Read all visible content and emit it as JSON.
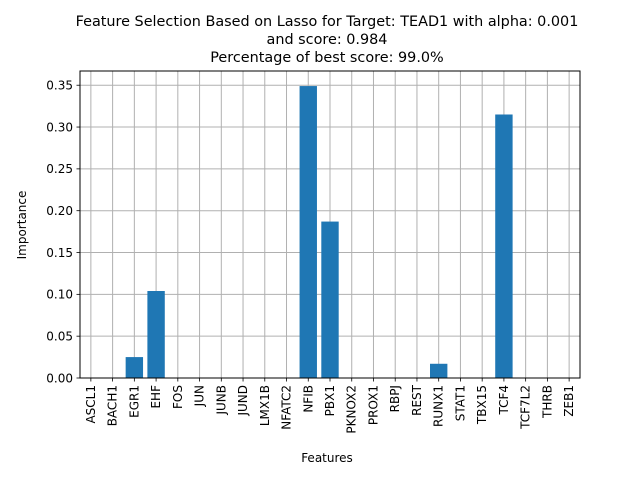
{
  "chart_data": {
    "type": "bar",
    "title_lines": [
      "Feature Selection Based on Lasso for Target: TEAD1 with alpha: 0.001",
      "and score: 0.984",
      "Percentage of best score: 99.0%"
    ],
    "xlabel": "Features",
    "ylabel": "Importance",
    "categories": [
      "ASCL1",
      "BACH1",
      "EGR1",
      "EHF",
      "FOS",
      "JUN",
      "JUNB",
      "JUND",
      "LMX1B",
      "NFATC2",
      "NFIB",
      "PBX1",
      "PKNOX2",
      "PROX1",
      "RBPJ",
      "REST",
      "RUNX1",
      "STAT1",
      "TBX15",
      "TCF4",
      "TCF7L2",
      "THRB",
      "ZEB1"
    ],
    "values": [
      0,
      0,
      0.025,
      0.104,
      0,
      0,
      0,
      0,
      0,
      0,
      0.349,
      0.187,
      0,
      0,
      0,
      0,
      0.017,
      0,
      0,
      0.315,
      0,
      0,
      0
    ],
    "ylim": [
      0,
      0.367
    ],
    "yticks": [
      "0.00",
      "0.05",
      "0.10",
      "0.15",
      "0.20",
      "0.25",
      "0.30",
      "0.35"
    ],
    "grid": true,
    "bar_color": "#1f77b4"
  }
}
